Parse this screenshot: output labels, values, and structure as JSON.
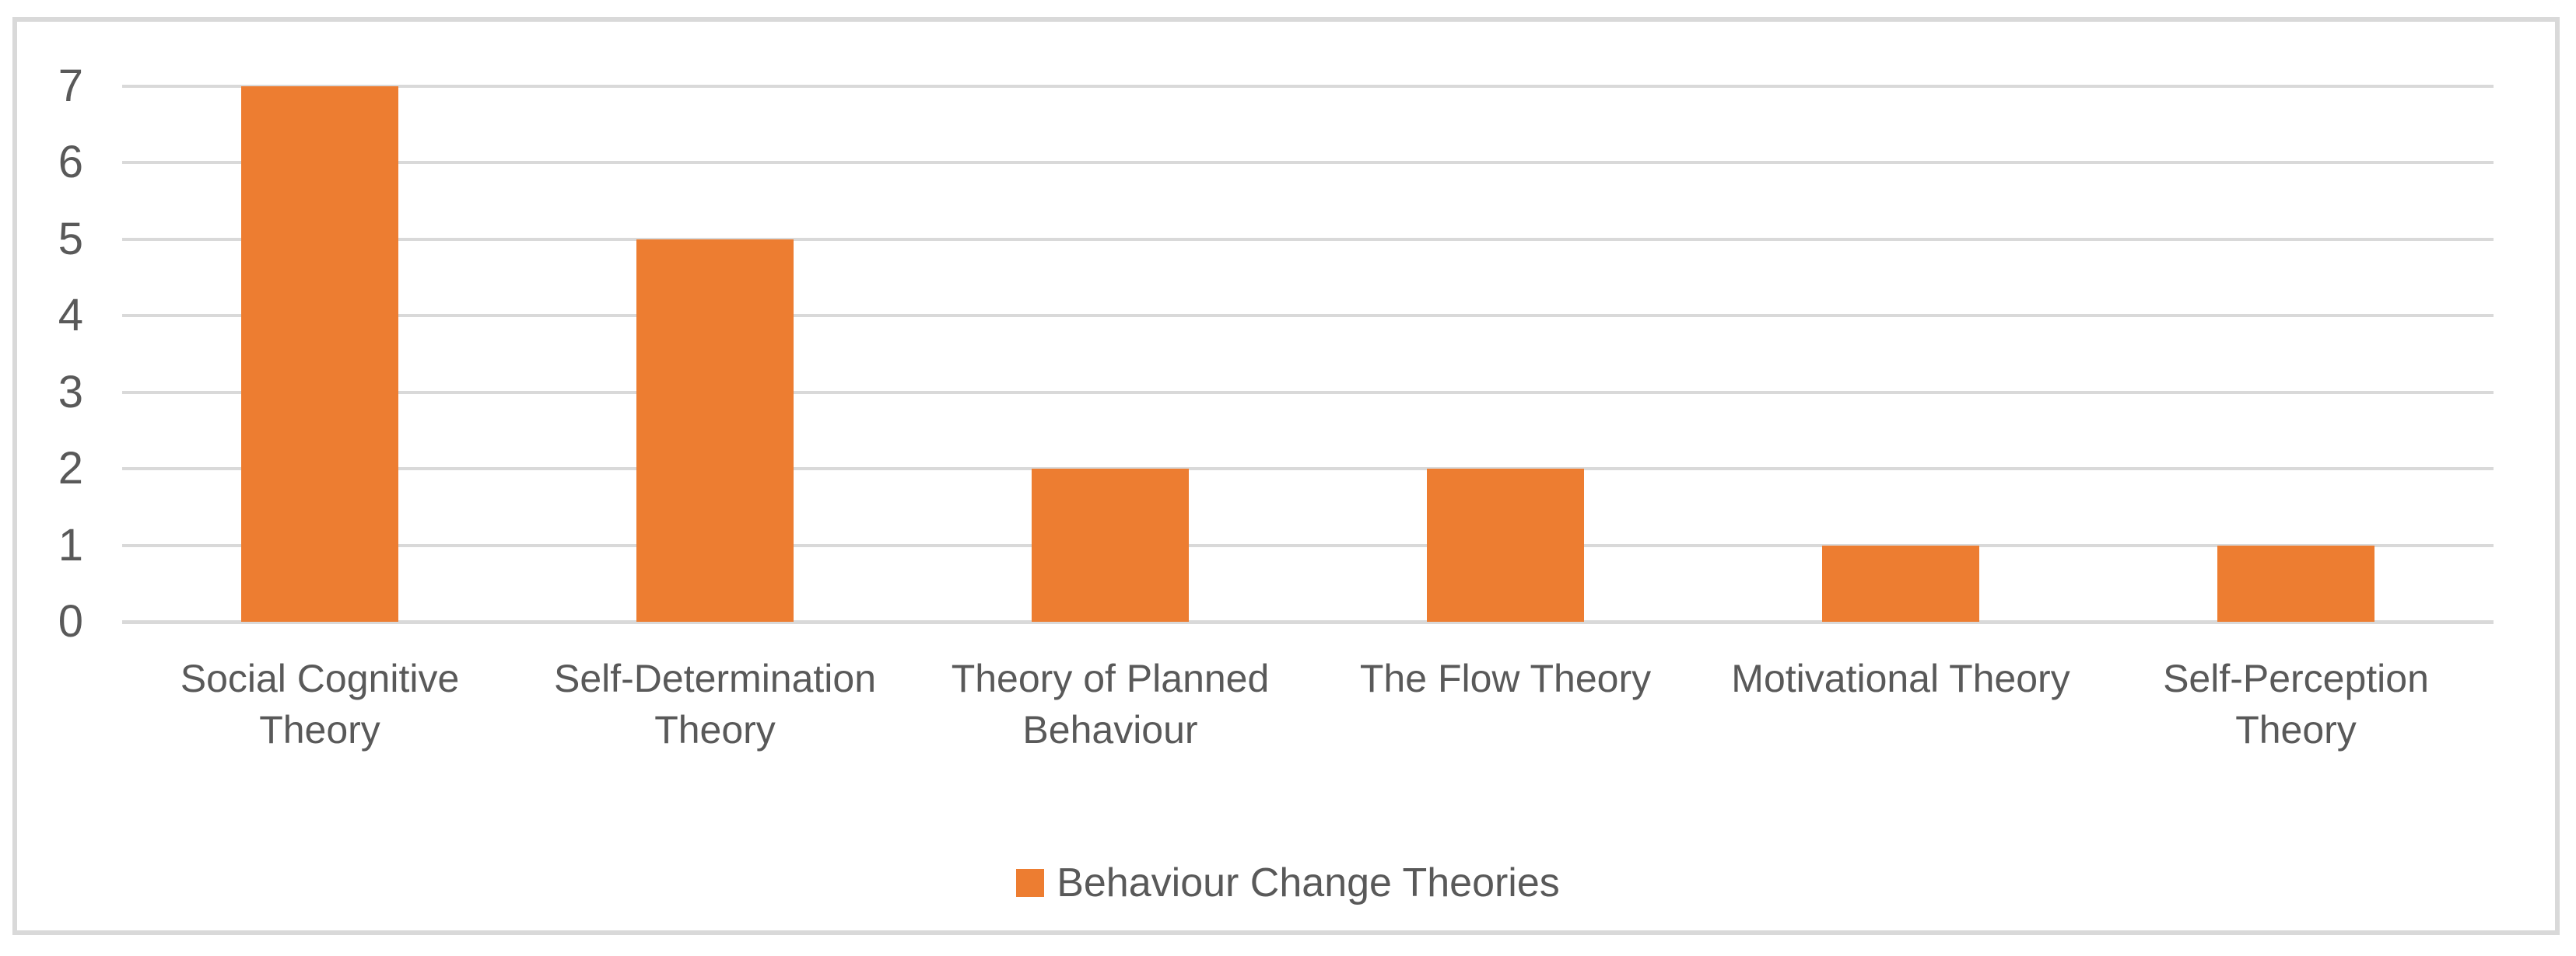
{
  "chart_data": {
    "type": "bar",
    "title": "",
    "categories": [
      "Social Cognitive Theory",
      "Self-Determination Theory",
      "Theory of Planned Behaviour",
      "The Flow Theory",
      "Motivational Theory",
      "Self-Perception Theory"
    ],
    "category_display": [
      "Social Cognitive\nTheory",
      "Self-Determination\nTheory",
      "Theory of Planned\nBehaviour",
      "The Flow Theory",
      "Motivational Theory",
      "Self-Perception\nTheory"
    ],
    "series": [
      {
        "name": "Behaviour Change Theories",
        "values": [
          7,
          5,
          2,
          2,
          1,
          1
        ]
      }
    ],
    "values": [
      7,
      5,
      2,
      2,
      1,
      1
    ],
    "legend": {
      "label": "Behaviour Change Theories",
      "position": "bottom-center"
    },
    "xlabel": "",
    "ylabel": "",
    "ylim": [
      0,
      7
    ],
    "yticks": [
      0,
      1,
      2,
      3,
      4,
      5,
      6,
      7
    ],
    "grid": true,
    "colors": {
      "bar": "#ED7D31",
      "gridline": "#D9D9D9",
      "border": "#D9D9D9",
      "text": "#595959",
      "background": "#FFFFFF"
    }
  }
}
